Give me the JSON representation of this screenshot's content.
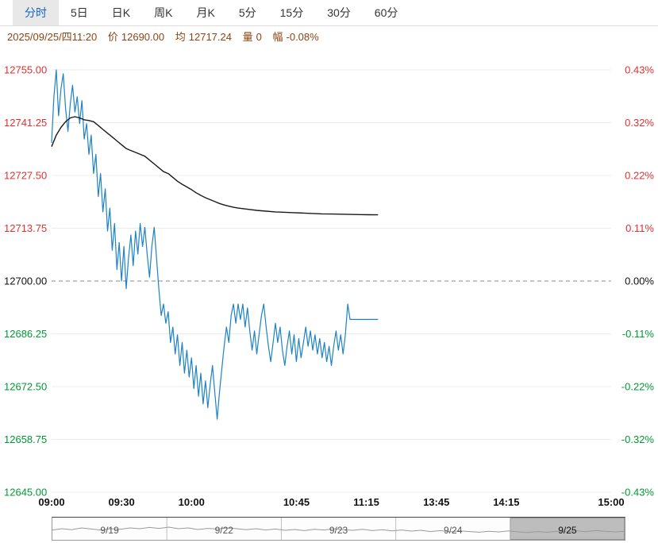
{
  "tabs": {
    "items": [
      {
        "label": "分时",
        "active": true
      },
      {
        "label": "5日",
        "active": false
      },
      {
        "label": "日K",
        "active": false
      },
      {
        "label": "周K",
        "active": false
      },
      {
        "label": "月K",
        "active": false
      },
      {
        "label": "5分",
        "active": false
      },
      {
        "label": "15分",
        "active": false
      },
      {
        "label": "30分",
        "active": false
      },
      {
        "label": "60分",
        "active": false
      }
    ]
  },
  "info_bar": {
    "datetime": "2025/09/25/四11:20",
    "price_label": "价",
    "price": "12690.00",
    "avg_label": "均",
    "avg": "12717.24",
    "volume_label": "量",
    "volume": "0",
    "change_label": "幅",
    "change": "-0.08%",
    "color": "#8b4513"
  },
  "chart_data": {
    "type": "line",
    "title": "分时 intraday price with average line",
    "ylim": [
      12645.0,
      12755.0
    ],
    "baseline": 12700.0,
    "session_minutes": 240,
    "grid": "horizontal",
    "legend": "none",
    "colors": {
      "up": "#e03131",
      "down": "#009933",
      "neutral": "#111111",
      "grid": "#ececec",
      "zero": "#888888",
      "price_line": "#1d82c6",
      "avg_line": "#1a1a1a",
      "x_label": "#111111"
    },
    "y_ticks": [
      {
        "value": 12755.0,
        "label": "12755.00",
        "pct": "0.43%"
      },
      {
        "value": 12741.25,
        "label": "12741.25",
        "pct": "0.32%"
      },
      {
        "value": 12727.5,
        "label": "12727.50",
        "pct": "0.22%"
      },
      {
        "value": 12713.75,
        "label": "12713.75",
        "pct": "0.11%"
      },
      {
        "value": 12700.0,
        "label": "12700.00",
        "pct": "0.00%"
      },
      {
        "value": 12686.25,
        "label": "12686.25",
        "pct": "-0.11%"
      },
      {
        "value": 12672.5,
        "label": "12672.50",
        "pct": "-0.22%"
      },
      {
        "value": 12658.75,
        "label": "12658.75",
        "pct": "-0.32%"
      },
      {
        "value": 12645.0,
        "label": "12645.00",
        "pct": "-0.43%"
      }
    ],
    "x_ticks": [
      {
        "label": "09:00",
        "minute": 0
      },
      {
        "label": "09:30",
        "minute": 30
      },
      {
        "label": "10:00",
        "minute": 60
      },
      {
        "label": "10:45",
        "minute": 105
      },
      {
        "label": "11:15",
        "minute": 135
      },
      {
        "label": "13:45",
        "minute": 165
      },
      {
        "label": "14:15",
        "minute": 195
      },
      {
        "label": "15:00",
        "minute": 240
      }
    ],
    "series": [
      {
        "name": "price",
        "points": [
          [
            0,
            12736
          ],
          [
            1,
            12748
          ],
          [
            2,
            12755
          ],
          [
            3,
            12743
          ],
          [
            4,
            12750
          ],
          [
            5,
            12754
          ],
          [
            6,
            12745
          ],
          [
            7,
            12739
          ],
          [
            8,
            12746
          ],
          [
            9,
            12751
          ],
          [
            10,
            12744
          ],
          [
            11,
            12748
          ],
          [
            12,
            12741
          ],
          [
            13,
            12747
          ],
          [
            14,
            12737
          ],
          [
            15,
            12741
          ],
          [
            16,
            12733
          ],
          [
            17,
            12738
          ],
          [
            18,
            12728
          ],
          [
            19,
            12733
          ],
          [
            20,
            12722
          ],
          [
            21,
            12728
          ],
          [
            22,
            12718
          ],
          [
            23,
            12724
          ],
          [
            24,
            12713
          ],
          [
            25,
            12719
          ],
          [
            26,
            12708
          ],
          [
            27,
            12715
          ],
          [
            28,
            12703
          ],
          [
            29,
            12710
          ],
          [
            30,
            12700
          ],
          [
            31,
            12709
          ],
          [
            32,
            12698
          ],
          [
            33,
            12706
          ],
          [
            34,
            12712
          ],
          [
            35,
            12704
          ],
          [
            36,
            12713
          ],
          [
            37,
            12707
          ],
          [
            38,
            12715
          ],
          [
            39,
            12709
          ],
          [
            40,
            12714
          ],
          [
            41,
            12707
          ],
          [
            42,
            12701
          ],
          [
            43,
            12709
          ],
          [
            44,
            12714
          ],
          [
            45,
            12706
          ],
          [
            46,
            12698
          ],
          [
            47,
            12691
          ],
          [
            48,
            12694
          ],
          [
            49,
            12689
          ],
          [
            50,
            12692
          ],
          [
            51,
            12684
          ],
          [
            52,
            12688
          ],
          [
            53,
            12681
          ],
          [
            54,
            12686
          ],
          [
            55,
            12678
          ],
          [
            56,
            12684
          ],
          [
            57,
            12676
          ],
          [
            58,
            12682
          ],
          [
            59,
            12675
          ],
          [
            60,
            12680
          ],
          [
            61,
            12672
          ],
          [
            62,
            12678
          ],
          [
            63,
            12670
          ],
          [
            64,
            12676
          ],
          [
            65,
            12668
          ],
          [
            66,
            12674
          ],
          [
            67,
            12667
          ],
          [
            68,
            12673
          ],
          [
            69,
            12678
          ],
          [
            70,
            12671
          ],
          [
            71,
            12664
          ],
          [
            72,
            12671
          ],
          [
            73,
            12677
          ],
          [
            74,
            12683
          ],
          [
            75,
            12688
          ],
          [
            76,
            12684
          ],
          [
            77,
            12691
          ],
          [
            78,
            12694
          ],
          [
            79,
            12689
          ],
          [
            80,
            12694
          ],
          [
            81,
            12690
          ],
          [
            82,
            12694
          ],
          [
            83,
            12688
          ],
          [
            84,
            12693
          ],
          [
            85,
            12687
          ],
          [
            86,
            12682
          ],
          [
            87,
            12687
          ],
          [
            88,
            12681
          ],
          [
            89,
            12686
          ],
          [
            90,
            12691
          ],
          [
            91,
            12694
          ],
          [
            92,
            12688
          ],
          [
            93,
            12683
          ],
          [
            94,
            12679
          ],
          [
            95,
            12684
          ],
          [
            96,
            12689
          ],
          [
            97,
            12684
          ],
          [
            98,
            12688
          ],
          [
            99,
            12682
          ],
          [
            100,
            12678
          ],
          [
            101,
            12683
          ],
          [
            102,
            12687
          ],
          [
            103,
            12681
          ],
          [
            104,
            12686
          ],
          [
            105,
            12679
          ],
          [
            106,
            12685
          ],
          [
            107,
            12680
          ],
          [
            108,
            12684
          ],
          [
            109,
            12688
          ],
          [
            110,
            12683
          ],
          [
            111,
            12687
          ],
          [
            112,
            12682
          ],
          [
            113,
            12686
          ],
          [
            114,
            12681
          ],
          [
            115,
            12685
          ],
          [
            116,
            12680
          ],
          [
            117,
            12684
          ],
          [
            118,
            12679
          ],
          [
            119,
            12683
          ],
          [
            120,
            12678
          ],
          [
            121,
            12683
          ],
          [
            122,
            12687
          ],
          [
            123,
            12682
          ],
          [
            124,
            12686
          ],
          [
            125,
            12681
          ],
          [
            126,
            12686
          ],
          [
            127,
            12694
          ],
          [
            128,
            12690
          ],
          [
            130,
            12690
          ],
          [
            132,
            12690
          ],
          [
            134,
            12690
          ],
          [
            136,
            12690
          ],
          [
            138,
            12690
          ],
          [
            140,
            12690
          ]
        ]
      },
      {
        "name": "average",
        "points": [
          [
            0,
            12735
          ],
          [
            2,
            12738
          ],
          [
            4,
            12740
          ],
          [
            6,
            12741.5
          ],
          [
            8,
            12742.5
          ],
          [
            10,
            12742.8
          ],
          [
            12,
            12742.5
          ],
          [
            14,
            12742
          ],
          [
            16,
            12741.8
          ],
          [
            18,
            12741.5
          ],
          [
            20,
            12740.5
          ],
          [
            22,
            12739.5
          ],
          [
            24,
            12738.5
          ],
          [
            26,
            12737.5
          ],
          [
            28,
            12736.5
          ],
          [
            30,
            12735.5
          ],
          [
            32,
            12734.5
          ],
          [
            34,
            12734
          ],
          [
            36,
            12733.5
          ],
          [
            38,
            12733
          ],
          [
            40,
            12732.5
          ],
          [
            42,
            12731.5
          ],
          [
            44,
            12730.5
          ],
          [
            46,
            12729.5
          ],
          [
            48,
            12728.5
          ],
          [
            50,
            12728
          ],
          [
            52,
            12727
          ],
          [
            54,
            12726
          ],
          [
            56,
            12725.2
          ],
          [
            58,
            12724.5
          ],
          [
            60,
            12723.8
          ],
          [
            62,
            12723
          ],
          [
            64,
            12722.3
          ],
          [
            66,
            12721.7
          ],
          [
            68,
            12721.2
          ],
          [
            70,
            12720.7
          ],
          [
            72,
            12720.2
          ],
          [
            74,
            12719.8
          ],
          [
            76,
            12719.5
          ],
          [
            78,
            12719.2
          ],
          [
            80,
            12719
          ],
          [
            84,
            12718.7
          ],
          [
            88,
            12718.4
          ],
          [
            92,
            12718.2
          ],
          [
            96,
            12718
          ],
          [
            100,
            12717.9
          ],
          [
            104,
            12717.8
          ],
          [
            108,
            12717.7
          ],
          [
            112,
            12717.6
          ],
          [
            116,
            12717.5
          ],
          [
            120,
            12717.45
          ],
          [
            124,
            12717.4
          ],
          [
            128,
            12717.35
          ],
          [
            132,
            12717.3
          ],
          [
            136,
            12717.27
          ],
          [
            140,
            12717.24
          ]
        ]
      }
    ]
  },
  "navigator": {
    "dates": [
      "9/19",
      "9/22",
      "9/23",
      "9/24",
      "9/25"
    ],
    "selected_index": 4,
    "sparkline": [
      0.42,
      0.5,
      0.44,
      0.55,
      0.48,
      0.42,
      0.5,
      0.46,
      0.55,
      0.5,
      0.58,
      0.52,
      0.6,
      0.5,
      0.55,
      0.45,
      0.52,
      0.48,
      0.55,
      0.5,
      0.44,
      0.5,
      0.42,
      0.48,
      0.4,
      0.45,
      0.38,
      0.46,
      0.42,
      0.5,
      0.44,
      0.4,
      0.46,
      0.38,
      0.44,
      0.36,
      0.42,
      0.35,
      0.4,
      0.32,
      0.38,
      0.3,
      0.36,
      0.32,
      0.28,
      0.34,
      0.3,
      0.36,
      0.3,
      0.26,
      0.32,
      0.28,
      0.34,
      0.3,
      0.36,
      0.32,
      0.38,
      0.34,
      0.3,
      0.34
    ]
  }
}
